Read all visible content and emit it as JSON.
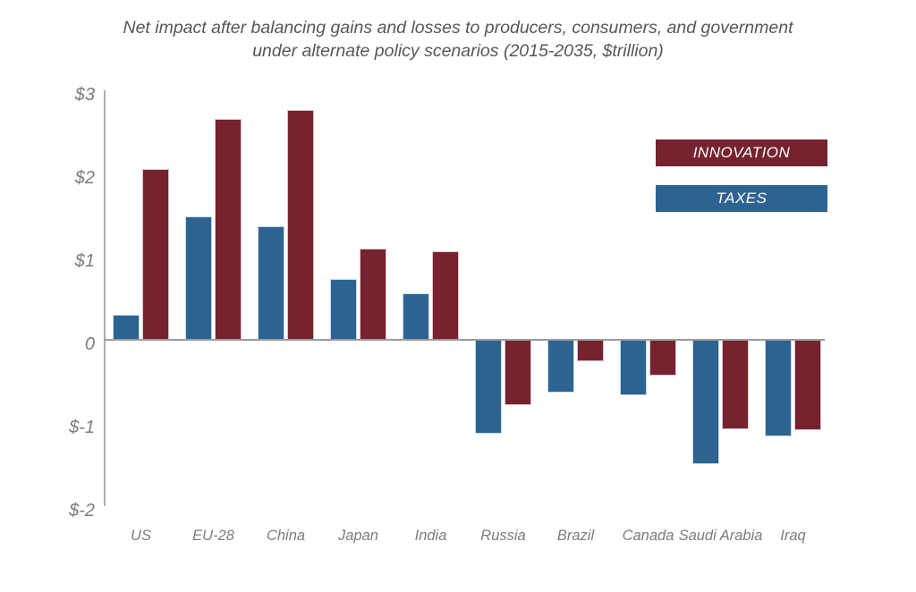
{
  "chart_data": {
    "type": "bar",
    "title": "Net impact after balancing gains and losses to producers, consumers, and government under alternate policy scenarios (2015-2035, $trillion)",
    "title_lines": [
      "Net impact after balancing gains and losses to producers, consumers, and government",
      "under alternate policy scenarios (2015-2035, $trillion)"
    ],
    "xlabel": "",
    "ylabel": "",
    "categories": [
      "US",
      "EU-28",
      "China",
      "Japan",
      "India",
      "Russia",
      "Brazil",
      "Canada",
      "Saudi Arabia",
      "Iraq"
    ],
    "series": [
      {
        "name": "INNOVATION",
        "color": "#76232F",
        "stroke": "#D9C6CA",
        "values": [
          2.05,
          2.66,
          2.76,
          1.1,
          1.06,
          -0.78,
          -0.26,
          -0.43,
          -1.07,
          -1.09
        ]
      },
      {
        "name": "TAXES",
        "color": "#2D6391",
        "stroke": "#C7DAEB",
        "values": [
          0.3,
          1.48,
          1.37,
          0.73,
          0.56,
          -1.13,
          -0.63,
          -0.67,
          -1.49,
          -1.16
        ]
      }
    ],
    "y_ticks": [
      {
        "value": 3,
        "label": "$3"
      },
      {
        "value": 2,
        "label": "$2"
      },
      {
        "value": 1,
        "label": "$1"
      },
      {
        "value": 0,
        "label": "0"
      },
      {
        "value": -1,
        "label": "$-1"
      },
      {
        "value": -2,
        "label": "$-2"
      }
    ],
    "ylim": [
      -2,
      3
    ],
    "grid": "none",
    "legend_position": "top-right",
    "colors": {
      "axis_line": "#AEAEAE",
      "zero_line": "#9B9B9B",
      "tick_text": "#7C7C80",
      "title_text": "#57575B",
      "legend_text": "#FFFFFF"
    }
  }
}
